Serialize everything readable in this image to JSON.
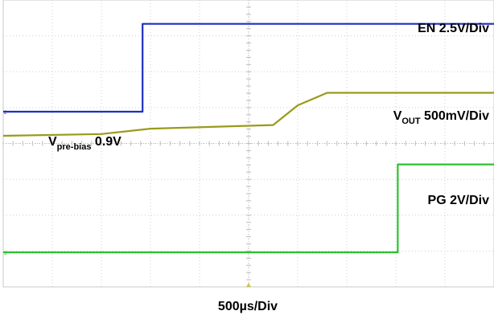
{
  "chart_data": {
    "type": "line",
    "x_axis_label": "500µs/Div",
    "x_unit": "µs",
    "time_per_div_us": 500,
    "divisions_x": 10,
    "divisions_y": 8,
    "grid": true,
    "channels": [
      {
        "label_main": "EN 2.5V/Div",
        "volts_per_div": 2.5,
        "color": "#1f2fbf",
        "ref_marker": "2",
        "baseline_div": 0.0,
        "points_us_div": [
          [
            0,
            0
          ],
          [
            1420,
            0
          ],
          [
            1420,
            3.5
          ],
          [
            5000,
            3.5
          ]
        ]
      },
      {
        "label_main": "V",
        "label_sub": "OUT",
        "label_rest": " 500mV/Div",
        "volts_per_div": 0.5,
        "color": "#9a9a1a",
        "points_us_div": [
          [
            0,
            0
          ],
          [
            1000,
            0.05
          ],
          [
            1500,
            0.2
          ],
          [
            2750,
            0.3
          ],
          [
            3000,
            0.85
          ],
          [
            3300,
            1.2
          ],
          [
            5000,
            1.2
          ]
        ]
      },
      {
        "label_main": "PG 2V/Div",
        "volts_per_div": 2,
        "color": "#2ec02e",
        "ref_marker": "3",
        "points_us_div": [
          [
            0,
            0
          ],
          [
            4020,
            0
          ],
          [
            4020,
            3.0
          ],
          [
            5000,
            3.0
          ]
        ]
      }
    ],
    "annotation": {
      "main": "V",
      "sub": "pre-bias",
      "rest": " 0.9V"
    }
  }
}
